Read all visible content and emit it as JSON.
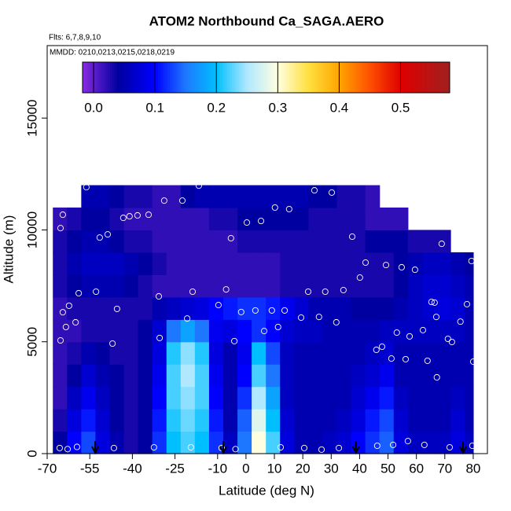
{
  "chart_data": {
    "type": "heatmap",
    "title": "ATOM2 Northbound Ca_SAGA.AERO",
    "subtitle": "Flts: 6,7,8,9,10",
    "annotation": "MMDD: 0210,0213,0215,0218,0219",
    "xlabel": "Latitude (deg N)",
    "ylabel": "Altitude (m)",
    "xlim": [
      -70,
      85
    ],
    "ylim": [
      0,
      18240
    ],
    "xticks": [
      -70,
      -55,
      -40,
      -25,
      -10,
      0,
      10,
      20,
      30,
      40,
      50,
      60,
      70,
      80
    ],
    "yticks": [
      0,
      5000,
      10000,
      15000
    ],
    "x_bins": [
      -68,
      -63,
      -58,
      -53,
      -48,
      -43,
      -38,
      -33,
      -28,
      -23,
      -18,
      -13,
      -8,
      -3,
      2,
      7,
      12,
      17,
      22,
      27,
      32,
      37,
      42,
      47,
      52,
      57,
      62,
      67,
      72,
      77,
      80
    ],
    "y_bins": [
      0,
      1000,
      2000,
      3000,
      4000,
      5000,
      6000,
      7000,
      8000,
      9000,
      10000,
      11000,
      12000
    ],
    "z": [
      [
        0.04,
        0.1,
        0.13,
        0.08,
        0.05,
        0.03,
        0.04,
        0.12,
        0.2,
        0.22,
        0.2,
        0.12,
        0.06,
        0.15,
        0.3,
        0.22,
        0.08,
        0.05,
        0.05,
        0.06,
        0.07,
        0.1,
        0.12,
        0.14,
        0.08,
        0.06,
        0.06,
        0.06,
        0.08,
        0.06
      ],
      [
        0.03,
        0.08,
        0.11,
        0.07,
        0.04,
        0.03,
        0.04,
        0.11,
        0.21,
        0.23,
        0.21,
        0.11,
        0.05,
        0.14,
        0.28,
        0.2,
        0.07,
        0.05,
        0.05,
        0.05,
        0.06,
        0.08,
        0.11,
        0.13,
        0.07,
        0.05,
        0.05,
        0.05,
        0.07,
        0.05
      ],
      [
        0.02,
        0.06,
        0.09,
        0.06,
        0.04,
        0.03,
        0.04,
        0.1,
        0.22,
        0.24,
        0.22,
        0.1,
        0.05,
        0.12,
        0.25,
        0.18,
        0.06,
        0.05,
        0.05,
        0.05,
        0.05,
        0.07,
        0.09,
        0.11,
        0.06,
        0.05,
        0.05,
        0.05,
        0.06,
        0.05
      ],
      [
        0.02,
        0.04,
        0.07,
        0.05,
        0.04,
        0.03,
        0.04,
        0.09,
        0.22,
        0.25,
        0.22,
        0.09,
        0.05,
        0.1,
        0.22,
        0.15,
        0.06,
        0.05,
        0.05,
        0.05,
        0.05,
        0.06,
        0.07,
        0.09,
        0.05,
        0.05,
        0.05,
        0.05,
        0.05,
        0.05
      ],
      [
        0.02,
        0.03,
        0.05,
        0.04,
        0.03,
        0.03,
        0.04,
        0.08,
        0.21,
        0.24,
        0.21,
        0.08,
        0.05,
        0.09,
        0.2,
        0.13,
        0.06,
        0.05,
        0.05,
        0.05,
        0.05,
        0.05,
        0.06,
        0.07,
        0.05,
        0.05,
        0.05,
        0.05,
        0.05,
        0.05
      ],
      [
        0.02,
        0.02,
        0.03,
        0.03,
        0.03,
        0.03,
        0.04,
        0.07,
        0.15,
        0.18,
        0.15,
        0.09,
        0.08,
        0.1,
        0.12,
        0.1,
        0.07,
        0.06,
        0.06,
        0.05,
        0.05,
        0.05,
        0.05,
        0.06,
        0.06,
        0.06,
        0.06,
        0.06,
        0.06,
        0.05
      ],
      [
        0.02,
        0.03,
        0.03,
        0.03,
        0.03,
        0.03,
        0.03,
        0.05,
        0.06,
        0.07,
        0.08,
        0.1,
        0.11,
        0.12,
        0.12,
        0.11,
        0.09,
        0.07,
        0.05,
        0.05,
        0.05,
        0.04,
        0.04,
        0.04,
        0.05,
        0.06,
        0.07,
        0.08,
        0.07,
        0.05
      ],
      [
        0.03,
        0.04,
        0.05,
        0.05,
        0.05,
        0.04,
        0.03,
        0.02,
        0.02,
        0.02,
        0.02,
        0.02,
        0.02,
        0.02,
        0.02,
        0.02,
        0.03,
        0.03,
        0.03,
        0.03,
        0.03,
        0.03,
        0.03,
        0.03,
        0.04,
        0.06,
        0.07,
        0.07,
        0.06,
        0.05
      ],
      [
        0.03,
        0.05,
        0.06,
        0.06,
        0.06,
        0.05,
        0.04,
        0.03,
        0.02,
        0.02,
        0.02,
        0.02,
        0.02,
        0.02,
        0.02,
        0.02,
        0.03,
        0.03,
        0.03,
        0.03,
        0.03,
        0.03,
        0.03,
        0.03,
        0.04,
        0.05,
        0.06,
        0.06,
        0.05,
        0.04
      ],
      [
        0.03,
        0.04,
        0.05,
        0.05,
        0.04,
        0.03,
        0.03,
        0.02,
        0.02,
        0.02,
        0.02,
        0.02,
        0.02,
        0.03,
        0.03,
        0.03,
        0.03,
        0.03,
        0.03,
        0.03,
        0.03,
        0.03,
        0.04,
        0.04,
        0.04,
        0.03,
        0.03,
        0.03,
        null,
        null
      ],
      [
        0.02,
        0.03,
        0.04,
        0.04,
        0.03,
        0.02,
        0.02,
        0.02,
        0.02,
        0.02,
        0.02,
        0.03,
        0.03,
        0.04,
        0.04,
        0.04,
        0.04,
        0.04,
        0.03,
        0.03,
        0.03,
        0.03,
        0.02,
        0.02,
        0.02,
        null,
        null,
        null,
        null,
        null
      ],
      [
        null,
        null,
        0.05,
        0.05,
        0.04,
        0.03,
        0.03,
        0.02,
        0.02,
        0.04,
        0.05,
        0.05,
        0.05,
        0.05,
        0.05,
        0.05,
        0.05,
        0.05,
        0.04,
        0.04,
        0.03,
        0.03,
        0.02,
        null,
        null,
        null,
        null,
        null,
        null,
        null
      ]
    ],
    "colormap": [
      {
        "value": -0.018,
        "color": "#8a2be2"
      },
      {
        "value": 0.04,
        "color": "#0000a0"
      },
      {
        "value": 0.1,
        "color": "#0000ff"
      },
      {
        "value": 0.15,
        "color": "#1e78ff"
      },
      {
        "value": 0.2,
        "color": "#00bfff"
      },
      {
        "value": 0.25,
        "color": "#b0e8ff"
      },
      {
        "value": 0.3,
        "color": "#ffffe0"
      },
      {
        "value": 0.35,
        "color": "#ffe040"
      },
      {
        "value": 0.4,
        "color": "#ffa500"
      },
      {
        "value": 0.45,
        "color": "#ff5000"
      },
      {
        "value": 0.5,
        "color": "#e00000"
      },
      {
        "value": 0.58,
        "color": "#a02020"
      }
    ],
    "colorbar_lim": [
      -0.018,
      0.58
    ],
    "colorbar_ticks": [
      {
        "value": 0,
        "label": "0.0"
      },
      {
        "value": 0.1,
        "label": "0.1"
      },
      {
        "value": 0.2,
        "label": "0.2"
      },
      {
        "value": 0.3,
        "label": "0.3"
      },
      {
        "value": 0.4,
        "label": "0.4"
      },
      {
        "value": 0.5,
        "label": "0.5"
      }
    ],
    "samples": {
      "x": [
        -65.3,
        -64.5,
        -64.5,
        -63.4,
        -62.3,
        -60.0,
        -58.9,
        -65.3,
        -56.2,
        -51.5,
        -48.7,
        -52.8,
        -45.4,
        -47.0,
        -43.2,
        -41.0,
        -38.2,
        -34.3,
        -30.4,
        -30.7,
        -28.8,
        -22.4,
        -18.8,
        -20.7,
        -16.6,
        -9.7,
        -7.0,
        -5.3,
        -4.1,
        -1.7,
        0.3,
        3.3,
        5.3,
        6.4,
        9.1,
        10.2,
        11.3,
        13.6,
        15.2,
        19.4,
        21.9,
        24.1,
        25.7,
        27.9,
        30.2,
        31.8,
        34.3,
        37.4,
        40.1,
        42.1,
        49.3,
        45.9,
        47.9,
        51.2,
        53.1,
        54.8,
        56.2,
        57.6,
        59.5,
        62.3,
        63.9,
        65.3,
        66.4,
        67.0,
        67.2,
        68.9,
        71.1,
        72.5,
        75.5,
        76.6,
        77.8,
        79.4,
        80.0,
        -65.6,
        -62.8,
        -59.5,
        -46.5,
        -32.4,
        -19.4,
        -8.6,
        -3.7,
        12.2,
        20.5,
        26.6,
        32.7,
        46.2,
        51.8,
        57.0,
        62.8,
        71.7,
        79.7
      ],
      "y": [
        10080,
        10680,
        6320,
        5660,
        6610,
        5870,
        7170,
        5060,
        11910,
        9660,
        9800,
        7240,
        6470,
        4920,
        10540,
        10610,
        10650,
        10680,
        5170,
        7030,
        11310,
        11310,
        7240,
        6040,
        11980,
        6640,
        7340,
        9630,
        5030,
        6330,
        10330,
        6400,
        10400,
        5480,
        6400,
        11000,
        5660,
        6400,
        10930,
        6080,
        7240,
        11770,
        6110,
        7240,
        11670,
        5870,
        7310,
        9700,
        7870,
        8540,
        8430,
        4640,
        4780,
        4250,
        5410,
        8330,
        4220,
        5240,
        8220,
        5520,
        4150,
        6780,
        6750,
        6110,
        3410,
        9380,
        5130,
        4990,
        5900,
        9380,
        6680,
        8610,
        4110,
        250,
        200,
        300,
        250,
        280,
        280,
        250,
        200,
        280,
        250,
        180,
        250,
        350,
        390,
        560,
        390,
        280,
        350
      ]
    },
    "arrows_x": [
      -53.1,
      -8.0,
      38.7,
      76.4
    ],
    "arrow_top": 560
  }
}
